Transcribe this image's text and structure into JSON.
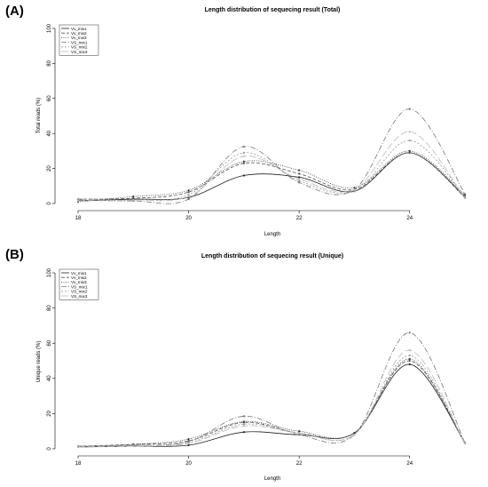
{
  "chart_data": [
    {
      "panel_label": "(A)",
      "type": "line",
      "title": "Length distribution of sequecing result (Total)",
      "xlabel": "Length",
      "ylabel": "Total reads (%)",
      "xlim": [
        18,
        25
      ],
      "ylim": [
        0,
        100
      ],
      "xticks": [
        "18",
        "20",
        "22",
        "24"
      ],
      "yticks": [
        "0",
        "20",
        "40",
        "60",
        "80",
        "100"
      ],
      "grid": false,
      "legend_position": "top-left",
      "x": [
        18,
        19,
        20,
        21,
        22,
        23,
        24,
        25
      ],
      "series": [
        {
          "name": "Vv_mix1",
          "color": "#222222",
          "values": [
            1.5,
            2.5,
            3.5,
            16,
            15,
            7,
            29,
            4
          ]
        },
        {
          "name": "Vv_mix2",
          "color": "#555555",
          "values": [
            2.5,
            3.0,
            6.5,
            23,
            17,
            8,
            29,
            3.5
          ]
        },
        {
          "name": "Vv_mix3",
          "color": "#333333",
          "values": [
            1.0,
            4.0,
            7.5,
            24,
            19,
            9,
            30,
            5
          ]
        },
        {
          "name": "VS_mix1",
          "color": "#777777",
          "values": [
            2.0,
            1.5,
            2.5,
            32.5,
            12,
            8,
            54,
            5.5
          ]
        },
        {
          "name": "VS_mix2",
          "color": "#999999",
          "values": [
            2.5,
            2.0,
            5.0,
            29,
            13,
            7,
            36,
            4
          ]
        },
        {
          "name": "VS_mix3",
          "color": "#bbbbbb",
          "values": [
            1.5,
            2.0,
            4.0,
            27,
            14,
            8,
            41,
            3
          ]
        }
      ]
    },
    {
      "panel_label": "(B)",
      "type": "line",
      "title": "Length distribution of sequecing result (Unique)",
      "xlabel": "Length",
      "ylabel": "Unique reads (%)",
      "xlim": [
        18,
        25
      ],
      "ylim": [
        0,
        100
      ],
      "xticks": [
        "18",
        "20",
        "22",
        "24"
      ],
      "yticks": [
        "0",
        "20",
        "40",
        "60",
        "80",
        "100"
      ],
      "grid": false,
      "legend_position": "top-left",
      "x": [
        18,
        19,
        20,
        21,
        22,
        23,
        24,
        25
      ],
      "series": [
        {
          "name": "Vv_mix1",
          "color": "#222222",
          "values": [
            1.0,
            1.5,
            2.0,
            9.5,
            8,
            9,
            48,
            3.5
          ]
        },
        {
          "name": "Vv_mix2",
          "color": "#555555",
          "values": [
            1.5,
            2.5,
            4.5,
            15,
            9,
            9,
            50,
            3.5
          ]
        },
        {
          "name": "Vv_mix3",
          "color": "#333333",
          "values": [
            1.0,
            2.5,
            5.5,
            15.5,
            10,
            9,
            51,
            3
          ]
        },
        {
          "name": "VS_mix1",
          "color": "#777777",
          "values": [
            1.5,
            2.0,
            4.0,
            18.5,
            8,
            8,
            66,
            3.5
          ]
        },
        {
          "name": "VS_mix2",
          "color": "#999999",
          "values": [
            1.5,
            2.0,
            3.5,
            14,
            9,
            8,
            53,
            3
          ]
        },
        {
          "name": "VS_mix3",
          "color": "#bbbbbb",
          "values": [
            1.0,
            1.5,
            3.0,
            13,
            9,
            8,
            56,
            3
          ]
        }
      ]
    }
  ]
}
